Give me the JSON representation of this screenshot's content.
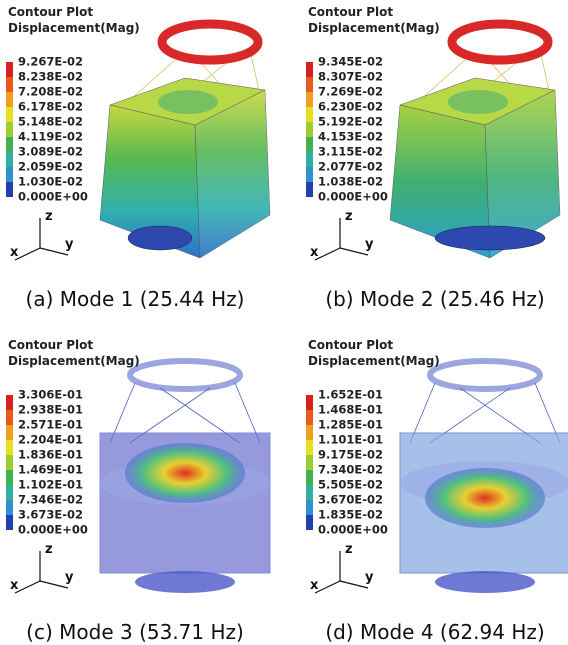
{
  "panels": [
    {
      "title": "Contour Plot",
      "subtitle": "Displacement(Mag)",
      "legend": [
        "9.267E-02",
        "8.238E-02",
        "7.208E-02",
        "6.178E-02",
        "5.148E-02",
        "4.119E-02",
        "3.089E-02",
        "2.059E-02",
        "1.030E-02",
        "0.000E+00"
      ],
      "axes": [
        "x",
        "y",
        "z"
      ],
      "caption": "(a) Mode 1 (25.44 Hz)"
    },
    {
      "title": "Contour Plot",
      "subtitle": "Displacement(Mag)",
      "legend": [
        "9.345E-02",
        "8.307E-02",
        "7.269E-02",
        "6.230E-02",
        "5.192E-02",
        "4.153E-02",
        "3.115E-02",
        "2.077E-02",
        "1.038E-02",
        "0.000E+00"
      ],
      "axes": [
        "x",
        "y",
        "z"
      ],
      "caption": "(b) Mode 2 (25.46 Hz)"
    },
    {
      "title": "Contour Plot",
      "subtitle": "Displacement(Mag)",
      "legend": [
        "3.306E-01",
        "2.938E-01",
        "2.571E-01",
        "2.204E-01",
        "1.836E-01",
        "1.469E-01",
        "1.102E-01",
        "7.346E-02",
        "3.673E-02",
        "0.000E+00"
      ],
      "axes": [
        "x",
        "y",
        "z"
      ],
      "caption": "(c) Mode 3 (53.71 Hz)"
    },
    {
      "title": "Contour Plot",
      "subtitle": "Displacement(Mag)",
      "legend": [
        "1.652E-01",
        "1.468E-01",
        "1.285E-01",
        "1.101E-01",
        "9.175E-02",
        "7.340E-02",
        "5.505E-02",
        "3.670E-02",
        "1.835E-02",
        "0.000E+00"
      ],
      "axes": [
        "x",
        "y",
        "z"
      ],
      "caption": "(d) Mode 4 (62.94 Hz)"
    }
  ]
}
